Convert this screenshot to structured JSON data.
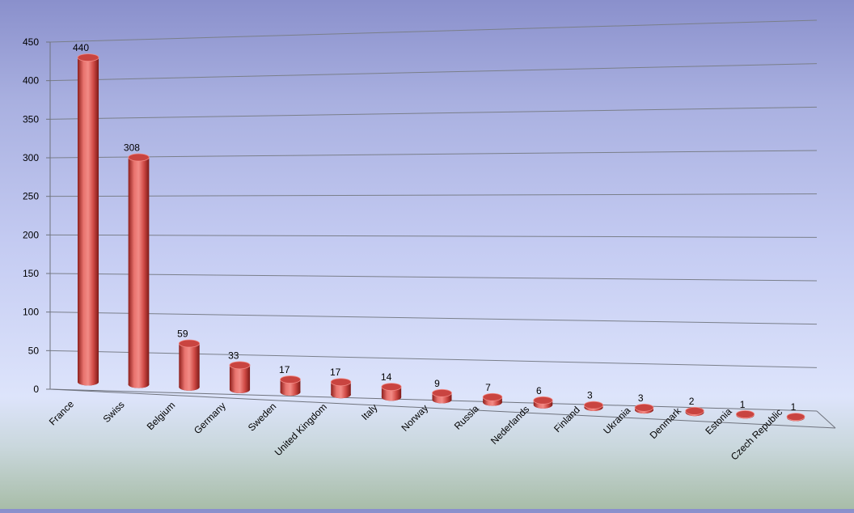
{
  "chart_data": {
    "type": "bar",
    "style": "3d-cylinder",
    "categories": [
      "France",
      "Swiss",
      "Belgium",
      "Germany",
      "Sweden",
      "United Kingdom",
      "Italy",
      "Norway",
      "Russia",
      "Nederlands",
      "Finland",
      "Ukrania",
      "Denmark",
      "Estonia",
      "Czech Republic"
    ],
    "values": [
      440,
      308,
      59,
      33,
      17,
      17,
      14,
      9,
      7,
      6,
      3,
      3,
      2,
      1,
      1
    ],
    "data_labels": [
      "440",
      "308",
      "59",
      "33",
      "17",
      "17",
      "14",
      "9",
      "7",
      "6",
      "3",
      "3",
      "2",
      "1",
      "1"
    ],
    "ylim": [
      0,
      450
    ],
    "yticks": [
      0,
      50,
      100,
      150,
      200,
      250,
      300,
      350,
      400,
      450
    ],
    "ytick_labels": [
      "0",
      "50",
      "100",
      "150",
      "200",
      "250",
      "300",
      "350",
      "400",
      "450"
    ],
    "grid": true,
    "legend": "none",
    "colors": {
      "bar": "#d9534f",
      "bar_dark": "#8e1f1c",
      "bar_light": "#f28b86",
      "bar_top": "#c94440",
      "grid": "#7a7f8a",
      "text": "#000000"
    }
  }
}
